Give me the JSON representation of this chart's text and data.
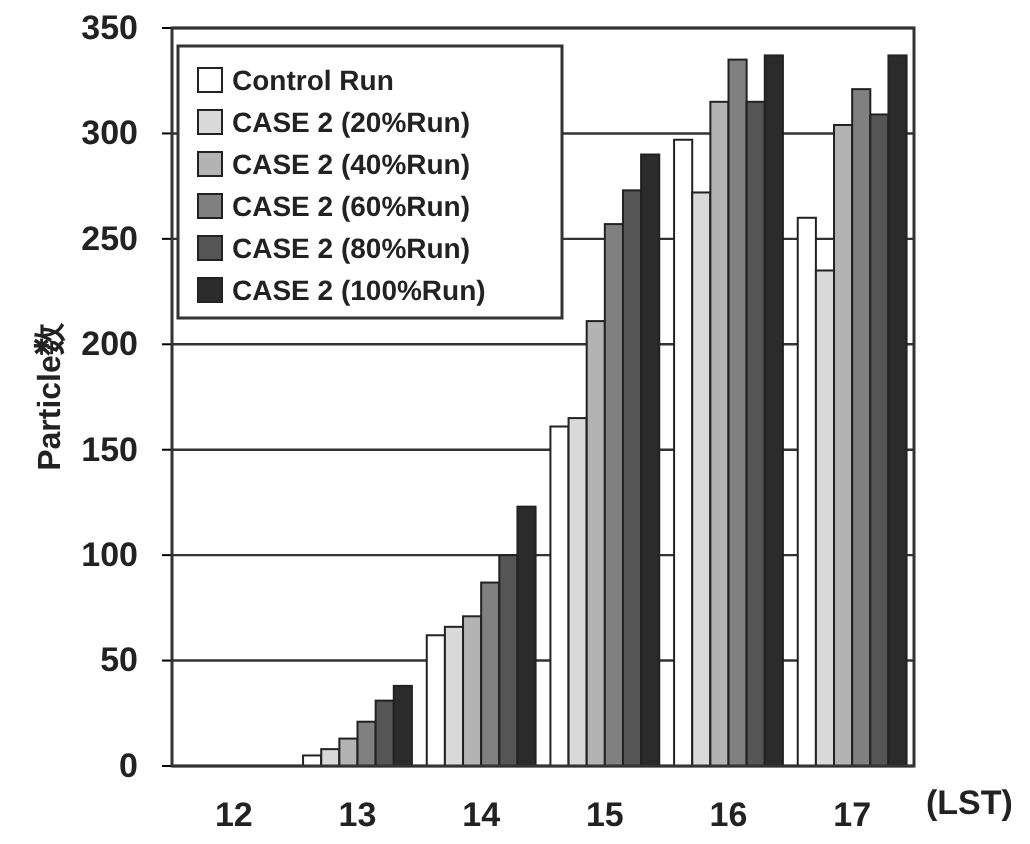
{
  "chart_data": {
    "type": "bar",
    "xlabel": "(LST)",
    "ylabel": "Particle数",
    "categories": [
      "12",
      "13",
      "14",
      "15",
      "16",
      "17"
    ],
    "series": [
      {
        "name": "Control Run",
        "color": "#ffffff",
        "values": [
          0,
          5,
          62,
          161,
          297,
          260
        ]
      },
      {
        "name": "CASE 2 (20%Run)",
        "color": "#d9d9d9",
        "values": [
          0,
          8,
          66,
          165,
          272,
          235
        ]
      },
      {
        "name": "CASE 2 (40%Run)",
        "color": "#b3b3b3",
        "values": [
          0,
          13,
          71,
          211,
          315,
          304
        ]
      },
      {
        "name": "CASE 2 (60%Run)",
        "color": "#808080",
        "values": [
          0,
          21,
          87,
          257,
          335,
          321
        ]
      },
      {
        "name": "CASE 2 (80%Run)",
        "color": "#555555",
        "values": [
          0,
          31,
          100,
          273,
          315,
          309
        ]
      },
      {
        "name": "CASE 2 (100%Run)",
        "color": "#2b2b2b",
        "values": [
          0,
          38,
          123,
          290,
          337,
          337
        ]
      }
    ],
    "ylim": [
      0,
      350
    ],
    "yticks": [
      0,
      50,
      100,
      150,
      200,
      250,
      300,
      350
    ],
    "grid": "y",
    "legend": "top left"
  }
}
